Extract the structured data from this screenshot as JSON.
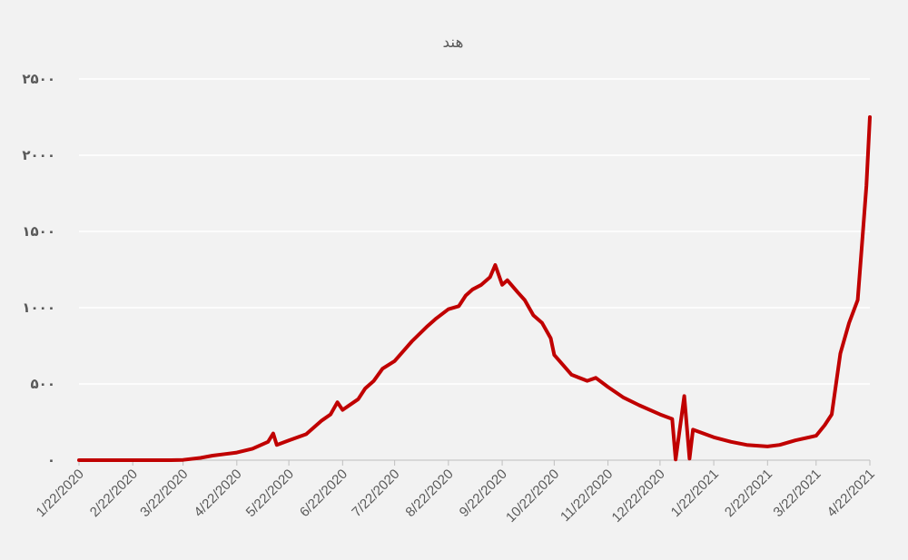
{
  "chart_data": {
    "type": "line",
    "title": "هند",
    "xlabel": "",
    "ylabel": "",
    "ylim": [
      0,
      2500
    ],
    "yticks": [
      0,
      500,
      1000,
      1500,
      2000,
      2500
    ],
    "ytick_labels": [
      "۰",
      "۵۰۰",
      "۱۰۰۰",
      "۱۵۰۰",
      "۲۰۰۰",
      "۲۵۰۰"
    ],
    "xticks": [
      "1/22/2020",
      "2/22/2020",
      "3/22/2020",
      "4/22/2020",
      "5/22/2020",
      "6/22/2020",
      "7/22/2020",
      "8/22/2020",
      "9/22/2020",
      "10/22/2020",
      "11/22/2020",
      "12/22/2020",
      "1/22/2021",
      "2/22/2021",
      "3/22/2021",
      "4/22/2021"
    ],
    "xlim": [
      "1/22/2020",
      "4/22/2021"
    ],
    "grid": "horizontal",
    "legend": "none",
    "color": "#c00000",
    "series": [
      {
        "x": [
          "1/22/2020",
          "2/22/2020",
          "3/15/2020",
          "3/22/2020",
          "4/1/2020",
          "4/8/2020",
          "4/15/2020",
          "4/22/2020",
          "5/1/2020",
          "5/10/2020",
          "5/13/2020",
          "5/15/2020",
          "5/22/2020",
          "6/1/2020",
          "6/10/2020",
          "6/15/2020",
          "6/19/2020",
          "6/22/2020",
          "7/1/2020",
          "7/5/2020",
          "7/10/2020",
          "7/15/2020",
          "7/22/2020",
          "8/1/2020",
          "8/10/2020",
          "8/15/2020",
          "8/22/2020",
          "8/28/2020",
          "9/1/2020",
          "9/5/2020",
          "9/10/2020",
          "9/15/2020",
          "9/18/2020",
          "9/22/2020",
          "9/25/2020",
          "10/1/2020",
          "10/5/2020",
          "10/10/2020",
          "10/15/2020",
          "10/20/2020",
          "10/22/2020",
          "11/1/2020",
          "11/10/2020",
          "11/15/2020",
          "11/22/2020",
          "12/1/2020",
          "12/10/2020",
          "12/22/2020",
          "12/29/2020",
          "12/31/2020",
          "1/5/2021",
          "1/8/2021",
          "1/10/2021",
          "1/22/2021",
          "2/1/2021",
          "2/10/2021",
          "2/22/2021",
          "3/1/2021",
          "3/10/2021",
          "3/22/2021",
          "3/27/2021",
          "3/31/2021",
          "4/5/2021",
          "4/10/2021",
          "4/15/2021",
          "4/18/2021",
          "4/20/2021",
          "4/22/2021"
        ],
        "y": [
          0,
          0,
          0,
          2,
          15,
          30,
          40,
          50,
          75,
          120,
          175,
          100,
          130,
          170,
          260,
          300,
          380,
          330,
          400,
          470,
          520,
          600,
          650,
          780,
          880,
          930,
          990,
          1010,
          1080,
          1120,
          1150,
          1200,
          1280,
          1150,
          1180,
          1100,
          1050,
          950,
          900,
          800,
          690,
          560,
          520,
          540,
          480,
          410,
          360,
          300,
          270,
          5,
          420,
          10,
          200,
          150,
          120,
          100,
          90,
          100,
          130,
          160,
          230,
          300,
          700,
          900,
          1050,
          1500,
          1800,
          2250
        ]
      }
    ]
  }
}
